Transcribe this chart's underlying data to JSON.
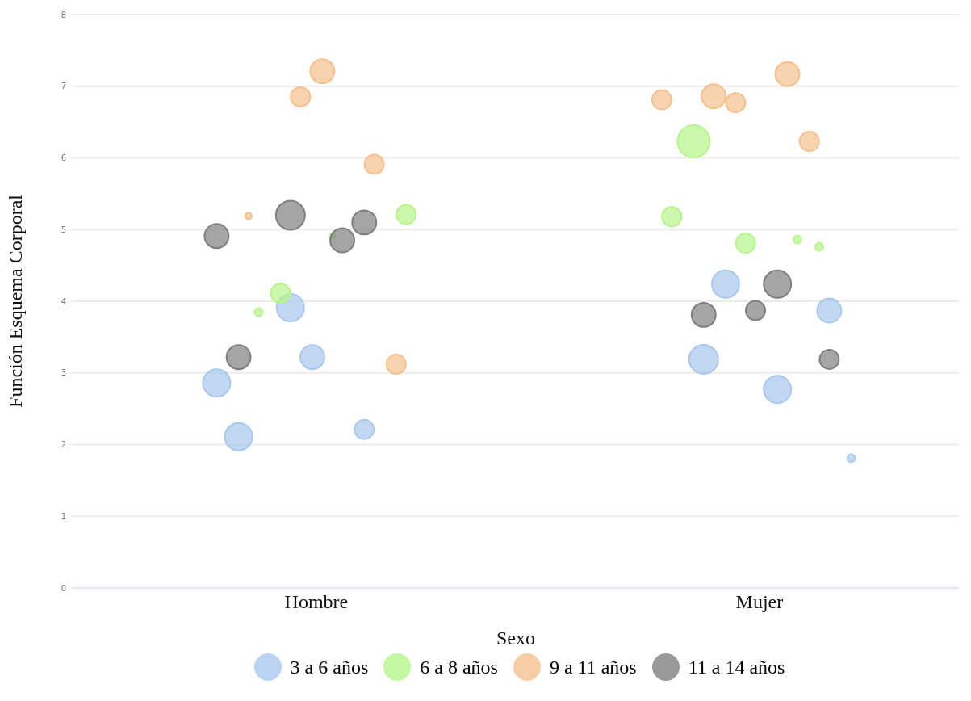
{
  "chart_data": {
    "type": "bubble",
    "xlabel": "Sexo",
    "ylabel": "Función Esquema Corporal",
    "categories": [
      "Hombre",
      "Mujer"
    ],
    "ylim": [
      0,
      8
    ],
    "yticks": [
      0,
      1,
      2,
      3,
      4,
      5,
      6,
      7,
      8
    ],
    "grid": "y",
    "legend": "bottom",
    "series": [
      {
        "name": "3 a 6 años",
        "color": "#a8c8ec",
        "x": [
          "Hombre",
          "Hombre",
          "Hombre",
          "Hombre",
          "Hombre",
          "Mujer",
          "Mujer",
          "Mujer",
          "Mujer",
          "Mujer"
        ],
        "values": [
          2.86,
          3.91,
          2.21,
          2.11,
          3.22,
          3.87,
          3.19,
          2.77,
          1.81,
          4.24
        ],
        "sizes": [
          0.72,
          0.72,
          0.36,
          0.72,
          0.56,
          0.56,
          0.81,
          0.72,
          0.06,
          0.72
        ]
      },
      {
        "name": "6 a 8 años",
        "color": "#b5f58a",
        "x": [
          "Hombre",
          "Hombre",
          "Hombre",
          "Hombre",
          "Mujer",
          "Mujer",
          "Mujer",
          "Mujer",
          "Mujer"
        ],
        "values": [
          3.85,
          4.91,
          5.21,
          4.11,
          4.86,
          5.18,
          4.81,
          4.76,
          6.23
        ],
        "sizes": [
          0.06,
          0.03,
          0.36,
          0.36,
          0.06,
          0.36,
          0.36,
          0.06,
          1
        ]
      },
      {
        "name": "9 a 11 años",
        "color": "#f5c08e",
        "x": [
          "Hombre",
          "Hombre",
          "Hombre",
          "Hombre",
          "Hombre",
          "Mujer",
          "Mujer",
          "Mujer",
          "Mujer",
          "Mujer"
        ],
        "values": [
          6.85,
          5.91,
          5.19,
          7.21,
          3.12,
          6.86,
          7.17,
          6.81,
          6.77,
          6.23
        ],
        "sizes": [
          0.36,
          0.36,
          0.04,
          0.56,
          0.36,
          0.56,
          0.56,
          0.36,
          0.36,
          0.36
        ]
      },
      {
        "name": "11 a 14 años",
        "color": "#7f7f7f",
        "x": [
          "Hombre",
          "Hombre",
          "Hombre",
          "Hombre",
          "Hombre",
          "Mujer",
          "Mujer",
          "Mujer",
          "Mujer"
        ],
        "values": [
          4.85,
          4.91,
          5.2,
          5.1,
          3.22,
          3.87,
          3.19,
          3.81,
          4.24
        ],
        "sizes": [
          0.56,
          0.56,
          0.81,
          0.56,
          0.56,
          0.36,
          0.36,
          0.56,
          0.72
        ]
      }
    ]
  }
}
